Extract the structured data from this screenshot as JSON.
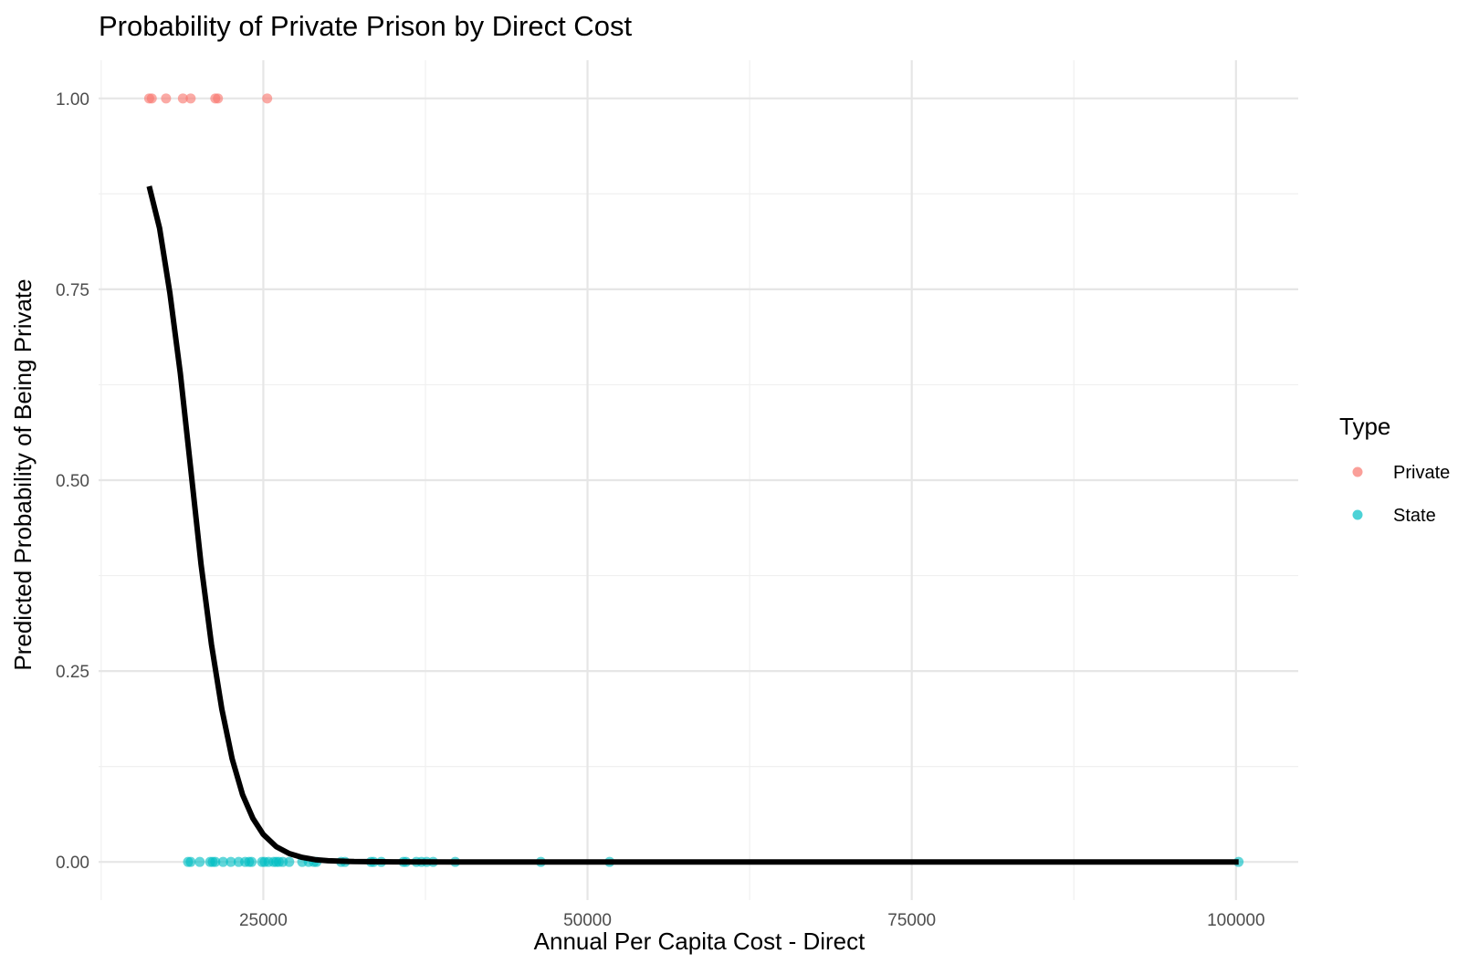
{
  "chart_data": {
    "type": "scatter",
    "title": "Probability of Private Prison by Direct Cost",
    "xlabel": "Annual Per Capita Cost - Direct",
    "ylabel": "Predicted Probability of Being Private",
    "xlim": [
      12300,
      104800
    ],
    "ylim": [
      -0.05,
      1.05
    ],
    "x_ticks": [
      25000,
      50000,
      75000,
      100000
    ],
    "x_tick_labels": [
      "25000",
      "50000",
      "75000",
      "100000"
    ],
    "y_ticks": [
      0,
      0.25,
      0.5,
      0.75,
      1.0
    ],
    "y_tick_labels": [
      "0.00",
      "0.25",
      "0.50",
      "0.75",
      "1.00"
    ],
    "grid": true,
    "legend": {
      "title": "Type",
      "placement": "right",
      "entries": [
        {
          "label": "Private",
          "color": "#F8766D"
        },
        {
          "label": "State",
          "color": "#00BFC4"
        }
      ]
    },
    "series": [
      {
        "name": "Private",
        "color": "#F8766D",
        "points": [
          [
            16200,
            1
          ],
          [
            16400,
            1
          ],
          [
            17500,
            1
          ],
          [
            18800,
            1
          ],
          [
            19400,
            1
          ],
          [
            21300,
            1
          ],
          [
            21500,
            1
          ],
          [
            25300,
            1
          ]
        ]
      },
      {
        "name": "State",
        "color": "#00BFC4",
        "points": [
          [
            19200,
            0
          ],
          [
            19400,
            0
          ],
          [
            20100,
            0
          ],
          [
            20900,
            0
          ],
          [
            21100,
            0
          ],
          [
            21300,
            0
          ],
          [
            21900,
            0
          ],
          [
            22500,
            0
          ],
          [
            23100,
            0
          ],
          [
            23600,
            0
          ],
          [
            23900,
            0
          ],
          [
            24100,
            0
          ],
          [
            24900,
            0
          ],
          [
            25100,
            0
          ],
          [
            25400,
            0
          ],
          [
            25800,
            0
          ],
          [
            26000,
            0
          ],
          [
            26200,
            0
          ],
          [
            26500,
            0
          ],
          [
            27000,
            0
          ],
          [
            28000,
            0
          ],
          [
            28500,
            0
          ],
          [
            28900,
            0
          ],
          [
            29100,
            0
          ],
          [
            31000,
            0
          ],
          [
            31300,
            0
          ],
          [
            33300,
            0
          ],
          [
            33500,
            0
          ],
          [
            34100,
            0
          ],
          [
            35800,
            0
          ],
          [
            36000,
            0
          ],
          [
            36800,
            0
          ],
          [
            37200,
            0
          ],
          [
            37600,
            0
          ],
          [
            38100,
            0
          ],
          [
            39800,
            0
          ],
          [
            46400,
            0
          ],
          [
            51700,
            0
          ],
          [
            100200,
            0
          ]
        ]
      },
      {
        "name": "",
        "type": "line",
        "color": "#000000",
        "points": [
          [
            16200,
            0.885
          ],
          [
            17000,
            0.83
          ],
          [
            17800,
            0.745
          ],
          [
            18600,
            0.64
          ],
          [
            19400,
            0.515
          ],
          [
            20200,
            0.39
          ],
          [
            21000,
            0.285
          ],
          [
            21800,
            0.2
          ],
          [
            22600,
            0.135
          ],
          [
            23400,
            0.088
          ],
          [
            24200,
            0.057
          ],
          [
            25000,
            0.036
          ],
          [
            26000,
            0.02
          ],
          [
            27000,
            0.011
          ],
          [
            28000,
            0.006
          ],
          [
            29000,
            0.003
          ],
          [
            30000,
            0.0015
          ],
          [
            32000,
            0.0004
          ],
          [
            35000,
            5e-05
          ],
          [
            40000,
            0
          ],
          [
            50000,
            0
          ],
          [
            75000,
            0
          ],
          [
            100200,
            0
          ]
        ]
      }
    ]
  }
}
